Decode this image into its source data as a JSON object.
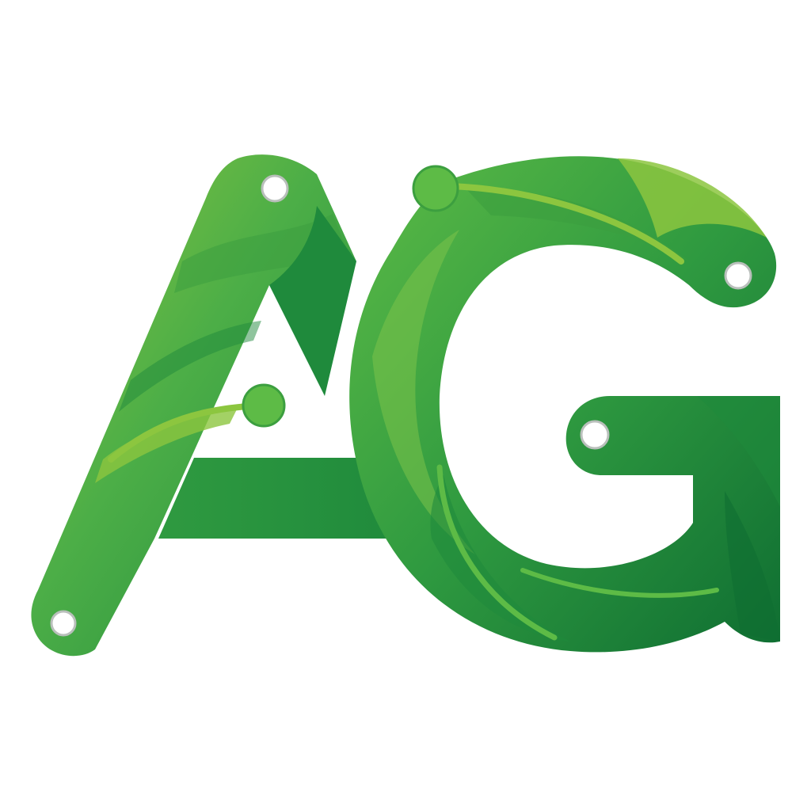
{
  "logo": {
    "monogram": "AG",
    "style": "leaf-textured monogram with circuit-trace nodes",
    "icon": "ag-leaf-circuit-logo",
    "colors": {
      "background": "#ffffff",
      "green_light": "#8cc63f",
      "green_mid": "#4cae47",
      "green_dark": "#1f8a3c",
      "green_deep": "#0f6e32",
      "hole_fill": "#ffffff",
      "hole_rim": "#b9bfbb"
    }
  }
}
